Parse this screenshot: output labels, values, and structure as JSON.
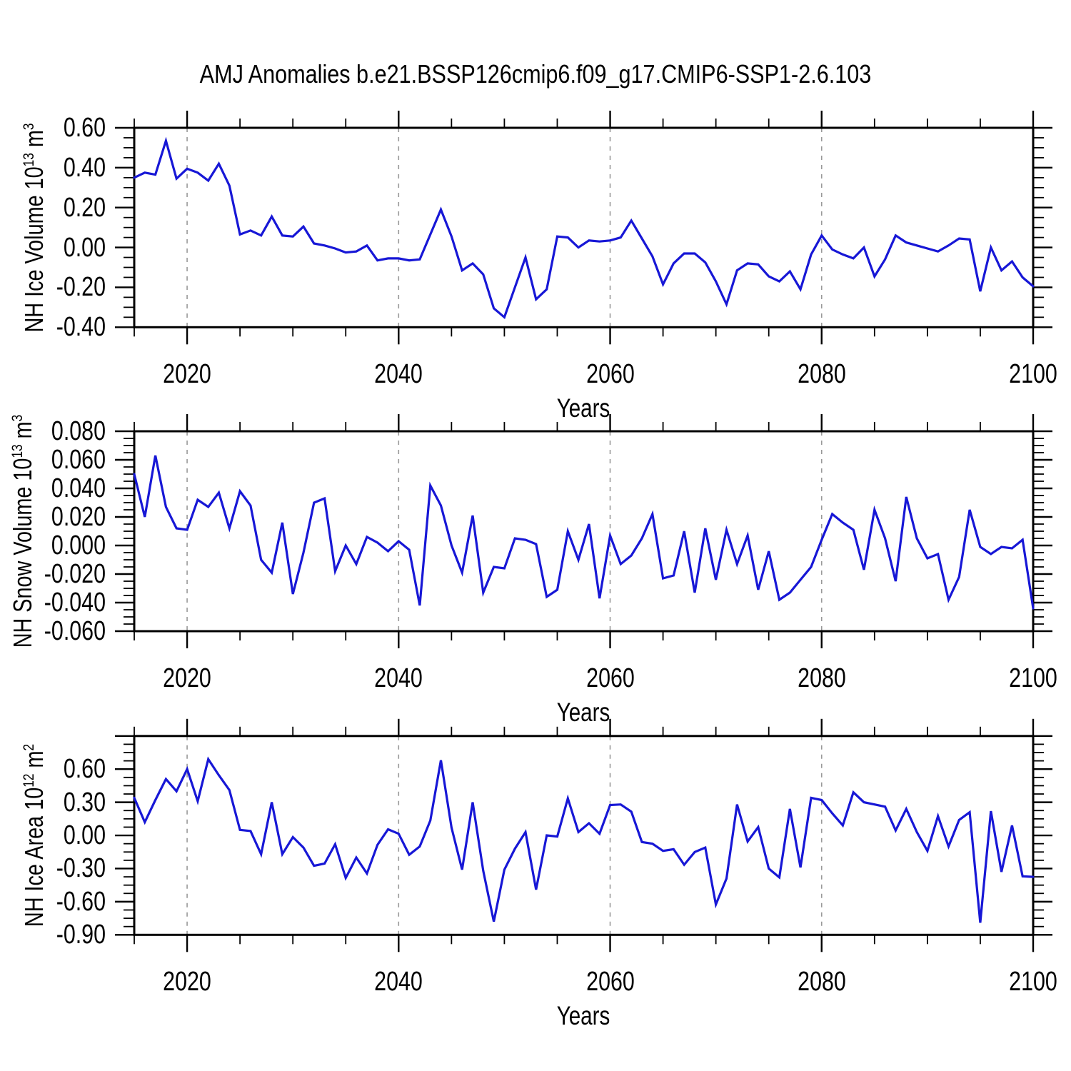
{
  "title": "AMJ Anomalies b.e21.BSSP126cmip6.f09_g17.CMIP6-SSP1-2.6.103",
  "xlabel": "Years",
  "line_color": "#1717d6",
  "frame_color": "#000000",
  "gridline_color": "#999999",
  "years_start": 2015,
  "years_end": 2100,
  "x_minor_step": 5,
  "x_major_ticks": [
    2020,
    2040,
    2060,
    2080,
    2100
  ],
  "x_tick_labels": [
    "2020",
    "2040",
    "2060",
    "2080",
    "2100"
  ],
  "x_gridlines": [
    2020,
    2040,
    2060,
    2080
  ],
  "chart_data": [
    {
      "type": "line",
      "name": "nh-ice-volume",
      "ylabel": {
        "base": "NH Ice Volume 10",
        "exp": "13",
        "unit": " m",
        "unit_exp": "3"
      },
      "ylim": [
        -0.4,
        0.6
      ],
      "y_major_values": [
        0.6,
        0.4,
        0.2,
        0.0,
        -0.2,
        -0.4
      ],
      "y_tick_labels": [
        "0.60",
        "0.40",
        "0.20",
        "0.00",
        "-0.20",
        "-0.40"
      ],
      "y_minor_step": 0.05,
      "x_start": 2015,
      "x_end": 2100,
      "x_step": 1,
      "values": [
        0.35,
        0.375,
        0.365,
        0.535,
        0.345,
        0.395,
        0.375,
        0.335,
        0.42,
        0.31,
        0.065,
        0.085,
        0.06,
        0.155,
        0.06,
        0.055,
        0.105,
        0.02,
        0.01,
        -0.005,
        -0.025,
        -0.02,
        0.01,
        -0.065,
        -0.055,
        -0.055,
        -0.065,
        -0.06,
        0.065,
        0.19,
        0.055,
        -0.115,
        -0.08,
        -0.135,
        -0.305,
        -0.35,
        -0.2,
        -0.05,
        -0.26,
        -0.21,
        0.055,
        0.05,
        0.0,
        0.035,
        0.03,
        0.035,
        0.05,
        0.135,
        0.045,
        -0.045,
        -0.185,
        -0.08,
        -0.03,
        -0.03,
        -0.075,
        -0.17,
        -0.285,
        -0.115,
        -0.08,
        -0.085,
        -0.145,
        -0.17,
        -0.12,
        -0.21,
        -0.035,
        0.06,
        -0.01,
        -0.035,
        -0.055,
        0.0,
        -0.145,
        -0.06,
        0.06,
        0.025,
        0.01,
        -0.005,
        -0.02,
        0.01,
        0.045,
        0.04,
        -0.22,
        0.0,
        -0.115,
        -0.07,
        -0.15,
        -0.195
      ]
    },
    {
      "type": "line",
      "name": "nh-snow-volume",
      "ylabel": {
        "base": "NH Snow Volume 10",
        "exp": "13",
        "unit": " m",
        "unit_exp": "3"
      },
      "ylim": [
        -0.06,
        0.08
      ],
      "y_major_values": [
        0.08,
        0.06,
        0.04,
        0.02,
        0.0,
        -0.02,
        -0.04,
        -0.06
      ],
      "y_tick_labels": [
        "0.080",
        "0.060",
        "0.040",
        "0.020",
        "0.000",
        "-0.020",
        "-0.040",
        "-0.060"
      ],
      "y_minor_step": 0.005,
      "x_start": 2015,
      "x_end": 2100,
      "x_step": 1,
      "values": [
        0.05,
        0.02,
        0.063,
        0.027,
        0.012,
        0.011,
        0.032,
        0.027,
        0.037,
        0.012,
        0.038,
        0.028,
        -0.01,
        -0.019,
        0.016,
        -0.034,
        -0.005,
        0.03,
        0.033,
        -0.018,
        0.0,
        -0.013,
        0.006,
        0.002,
        -0.004,
        0.003,
        -0.003,
        -0.042,
        0.042,
        0.028,
        0.0,
        -0.019,
        0.021,
        -0.033,
        -0.015,
        -0.016,
        0.005,
        0.004,
        0.001,
        -0.036,
        -0.031,
        0.01,
        -0.01,
        0.015,
        -0.037,
        0.007,
        -0.013,
        -0.007,
        0.005,
        0.022,
        -0.023,
        -0.021,
        0.01,
        -0.033,
        0.012,
        -0.024,
        0.011,
        -0.013,
        0.007,
        -0.031,
        -0.004,
        -0.038,
        -0.033,
        -0.024,
        -0.015,
        0.004,
        0.022,
        0.016,
        0.011,
        -0.017,
        0.025,
        0.005,
        -0.025,
        0.034,
        0.005,
        -0.009,
        -0.006,
        -0.038,
        -0.022,
        0.025,
        -0.001,
        -0.006,
        -0.001,
        -0.002,
        0.004,
        -0.044
      ]
    },
    {
      "type": "line",
      "name": "nh-ice-area",
      "ylabel": {
        "base": "NH Ice Area 10",
        "exp": "12",
        "unit": " m",
        "unit_exp": "2"
      },
      "ylim": [
        -0.9,
        0.9
      ],
      "y_major_values": [
        0.9,
        0.6,
        0.3,
        0.0,
        -0.3,
        -0.6,
        -0.9
      ],
      "y_tick_labels": [
        "",
        "0.60",
        "0.30",
        "0.00",
        "-0.30",
        "-0.60",
        "-0.90"
      ],
      "y_minor_step": 0.075,
      "x_start": 2015,
      "x_end": 2100,
      "x_step": 1,
      "values": [
        0.34,
        0.12,
        0.32,
        0.51,
        0.4,
        0.6,
        0.31,
        0.69,
        0.545,
        0.41,
        0.05,
        0.04,
        -0.17,
        0.3,
        -0.17,
        -0.015,
        -0.11,
        -0.275,
        -0.255,
        -0.08,
        -0.385,
        -0.2,
        -0.345,
        -0.085,
        0.055,
        0.015,
        -0.175,
        -0.1,
        0.135,
        0.68,
        0.07,
        -0.31,
        0.3,
        -0.32,
        -0.78,
        -0.31,
        -0.12,
        0.03,
        -0.49,
        0.0,
        -0.01,
        0.335,
        0.03,
        0.11,
        0.015,
        0.275,
        0.28,
        0.215,
        -0.06,
        -0.075,
        -0.14,
        -0.125,
        -0.265,
        -0.15,
        -0.11,
        -0.625,
        -0.39,
        0.28,
        -0.055,
        0.075,
        -0.3,
        -0.38,
        0.24,
        -0.29,
        0.34,
        0.32,
        0.2,
        0.09,
        0.39,
        0.3,
        0.28,
        0.26,
        0.045,
        0.24,
        0.03,
        -0.14,
        0.175,
        -0.1,
        0.14,
        0.21,
        -0.79,
        0.22,
        -0.33,
        0.09,
        -0.37,
        -0.375
      ]
    }
  ]
}
